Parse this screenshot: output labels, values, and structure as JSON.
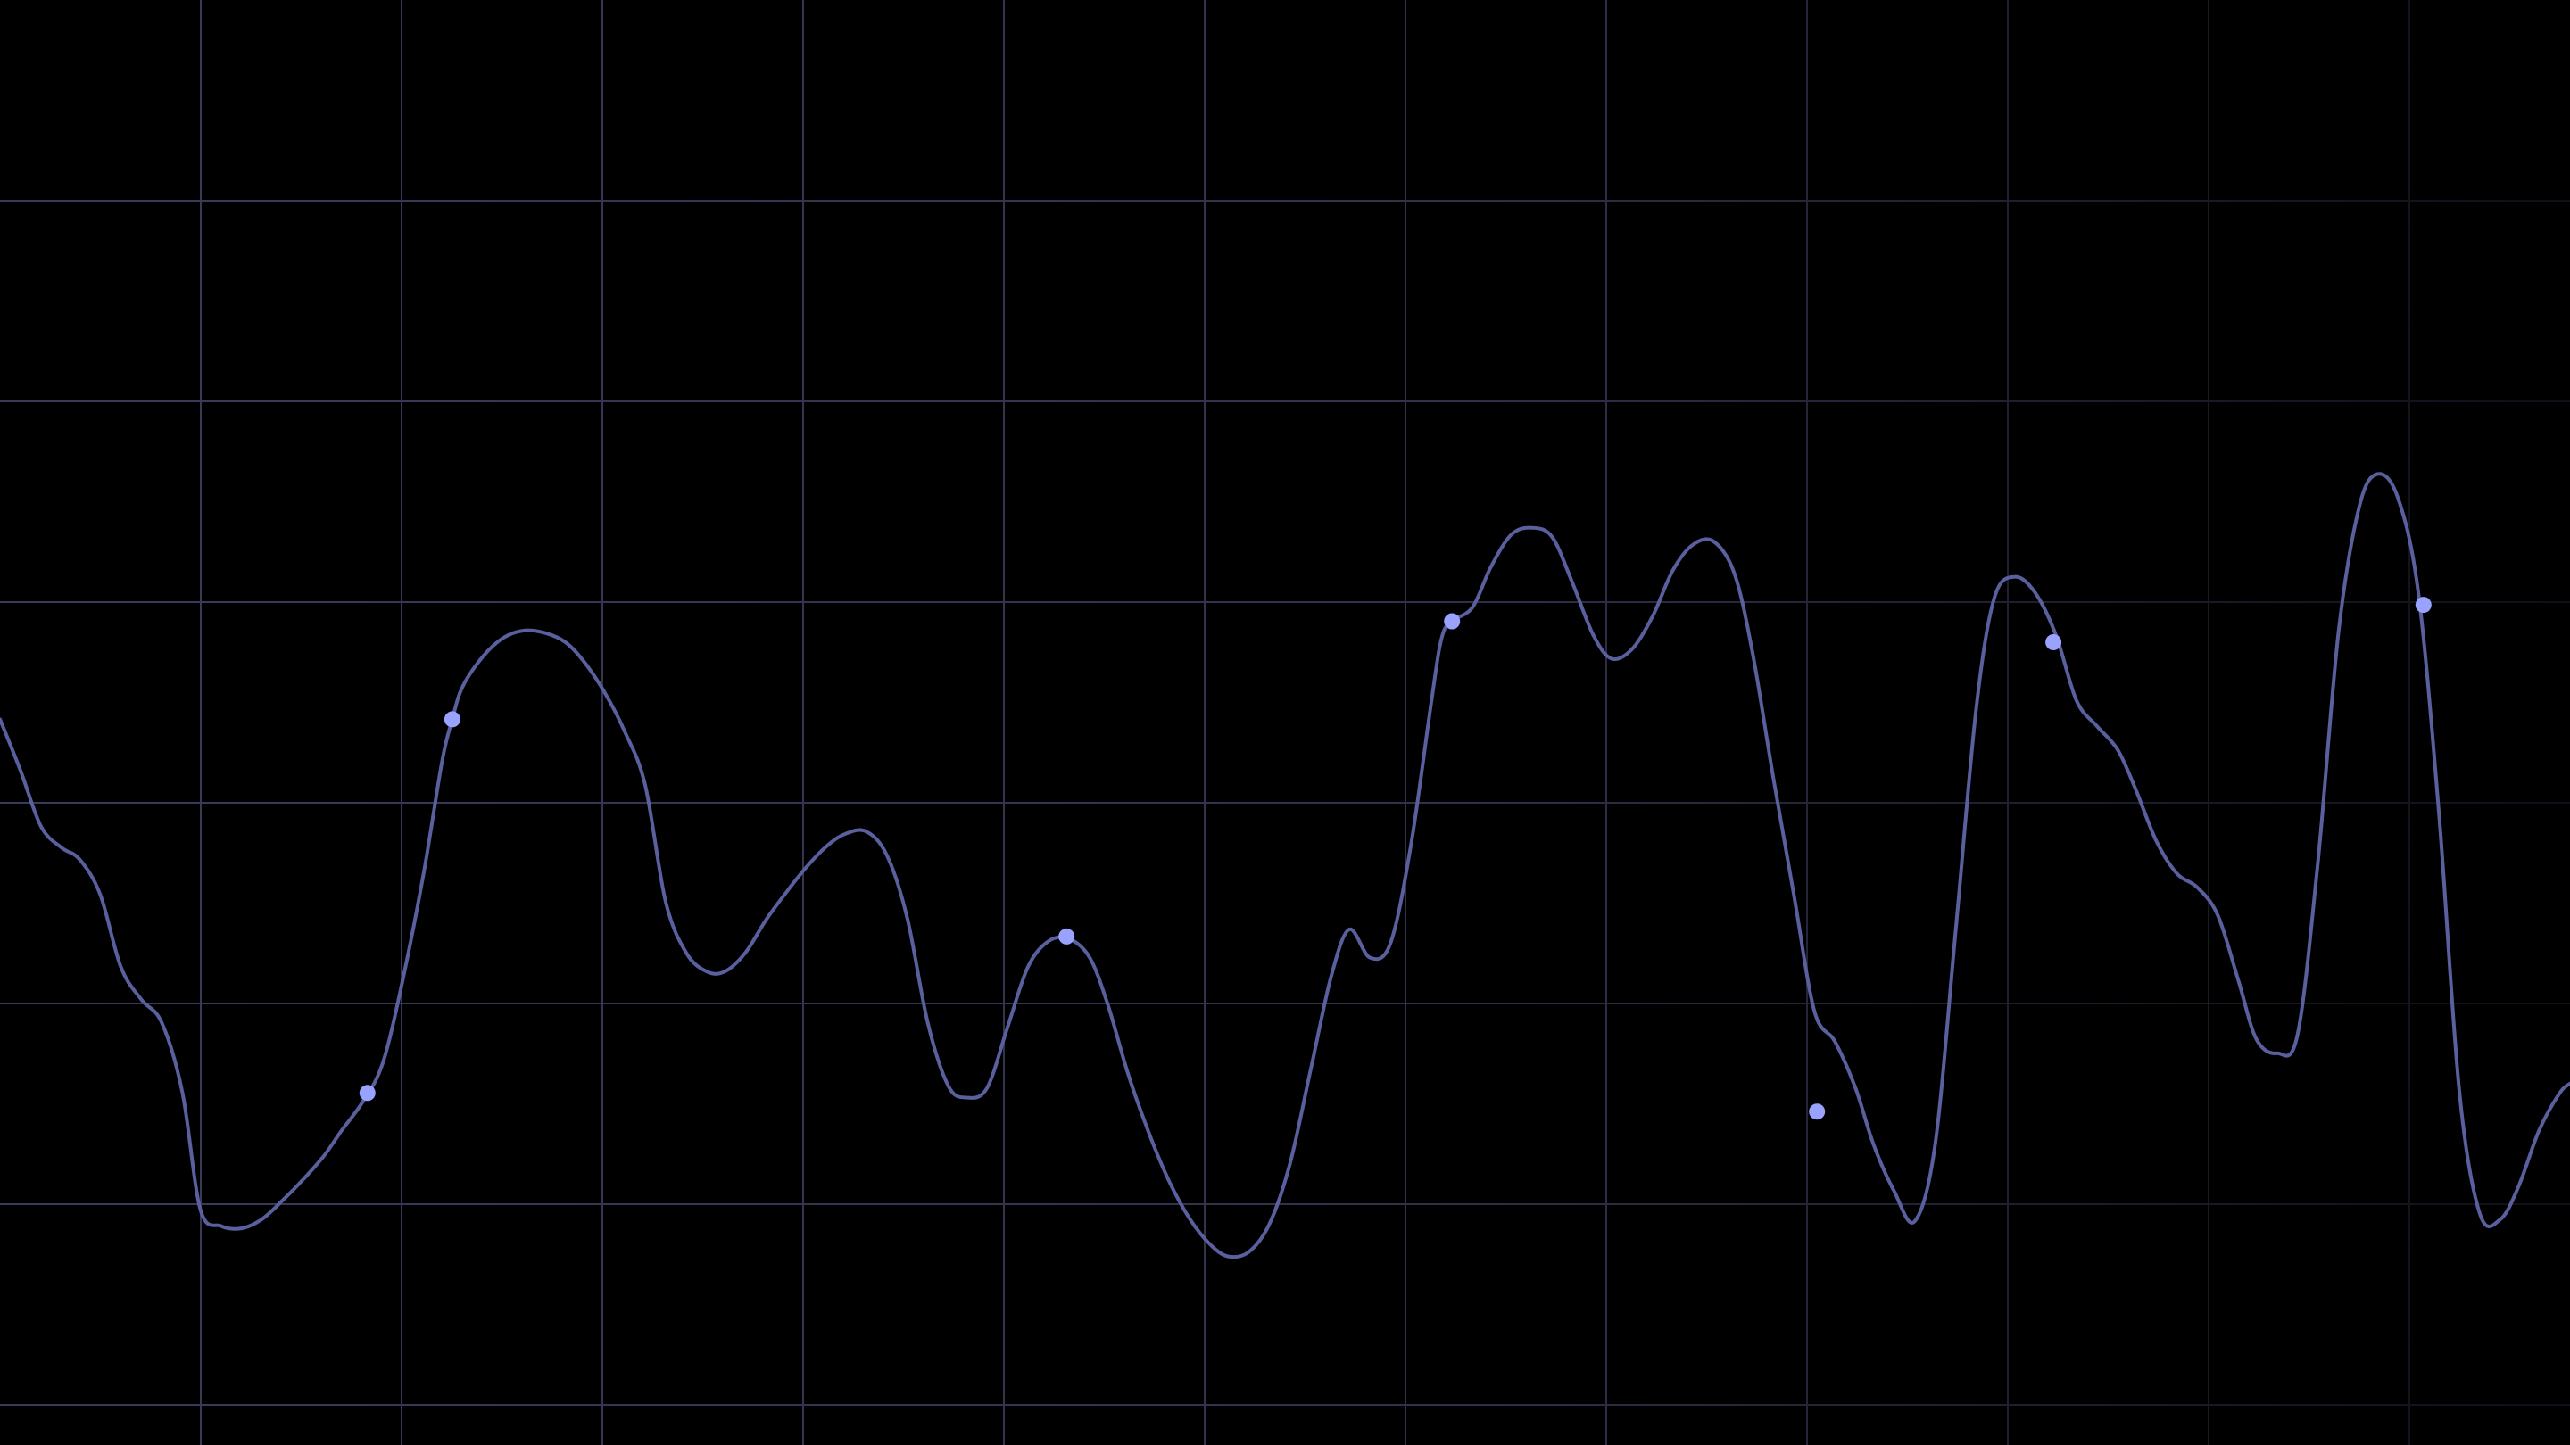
{
  "chart_data": {
    "type": "line",
    "title": "",
    "xlabel": "",
    "ylabel": "",
    "xlim": [
      0,
      100
    ],
    "ylim": [
      0,
      100
    ],
    "grid": true,
    "x_gridlines": 12,
    "y_gridlines": 7,
    "legend": "none",
    "colors": {
      "background": "#000000",
      "grid": "#3a3a5a",
      "line": "#5a5f9e",
      "marker": "#9aa2ff"
    },
    "series": [
      {
        "points": [
          [
            0.0,
            31.0
          ],
          [
            0.8,
            28.8
          ],
          [
            1.6,
            26.4
          ],
          [
            2.4,
            25.5
          ],
          [
            3.1,
            25.0
          ],
          [
            3.9,
            23.5
          ],
          [
            4.7,
            20.4
          ],
          [
            5.5,
            19.0
          ],
          [
            6.3,
            18.0
          ],
          [
            7.1,
            15.0
          ],
          [
            7.8,
            10.0
          ],
          [
            8.6,
            9.3
          ],
          [
            9.4,
            9.2
          ],
          [
            10.2,
            9.6
          ],
          [
            11.0,
            10.4
          ],
          [
            11.8,
            11.3
          ],
          [
            12.6,
            12.3
          ],
          [
            13.3,
            13.4
          ],
          [
            14.1,
            14.6
          ],
          [
            14.9,
            16.3
          ],
          [
            15.7,
            20.0
          ],
          [
            16.5,
            24.5
          ],
          [
            17.2,
            29.2
          ],
          [
            17.6,
            31.0
          ],
          [
            18.0,
            32.4
          ],
          [
            18.8,
            33.7
          ],
          [
            19.6,
            34.5
          ],
          [
            20.4,
            34.8
          ],
          [
            21.2,
            34.7
          ],
          [
            22.0,
            34.3
          ],
          [
            22.7,
            33.5
          ],
          [
            23.5,
            32.2
          ],
          [
            24.3,
            30.5
          ],
          [
            25.1,
            28.2
          ],
          [
            25.9,
            23.2
          ],
          [
            26.7,
            21.0
          ],
          [
            27.5,
            20.2
          ],
          [
            28.2,
            20.2
          ],
          [
            29.0,
            21.0
          ],
          [
            29.8,
            22.4
          ],
          [
            30.6,
            23.6
          ],
          [
            31.4,
            24.7
          ],
          [
            32.2,
            25.6
          ],
          [
            32.9,
            26.1
          ],
          [
            33.7,
            26.2
          ],
          [
            34.5,
            25.2
          ],
          [
            35.3,
            22.5
          ],
          [
            36.1,
            18.0
          ],
          [
            36.9,
            15.3
          ],
          [
            37.6,
            14.8
          ],
          [
            38.4,
            15.2
          ],
          [
            39.2,
            17.8
          ],
          [
            40.0,
            20.4
          ],
          [
            40.8,
            21.5
          ],
          [
            41.6,
            21.6
          ],
          [
            42.4,
            20.8
          ],
          [
            43.1,
            18.8
          ],
          [
            43.9,
            15.8
          ],
          [
            44.7,
            13.3
          ],
          [
            45.5,
            11.2
          ],
          [
            46.3,
            9.6
          ],
          [
            47.1,
            8.5
          ],
          [
            47.8,
            8.0
          ],
          [
            48.6,
            8.2
          ],
          [
            49.4,
            9.4
          ],
          [
            50.2,
            12.0
          ],
          [
            51.0,
            16.0
          ],
          [
            51.8,
            20.0
          ],
          [
            52.5,
            22.0
          ],
          [
            53.3,
            20.8
          ],
          [
            54.1,
            21.4
          ],
          [
            54.9,
            25.6
          ],
          [
            55.7,
            31.8
          ],
          [
            56.1,
            34.5
          ],
          [
            56.5,
            35.2
          ],
          [
            57.3,
            35.8
          ],
          [
            58.0,
            37.5
          ],
          [
            58.8,
            38.9
          ],
          [
            59.6,
            39.2
          ],
          [
            60.4,
            38.8
          ],
          [
            61.2,
            36.8
          ],
          [
            62.0,
            34.6
          ],
          [
            62.7,
            33.6
          ],
          [
            63.5,
            34.0
          ],
          [
            64.3,
            35.4
          ],
          [
            65.1,
            37.4
          ],
          [
            65.9,
            38.5
          ],
          [
            66.7,
            38.6
          ],
          [
            67.5,
            37.2
          ],
          [
            68.2,
            33.8
          ],
          [
            69.0,
            28.5
          ],
          [
            69.8,
            23.5
          ],
          [
            70.6,
            18.5
          ],
          [
            71.4,
            17.2
          ],
          [
            72.2,
            15.2
          ],
          [
            72.9,
            12.8
          ],
          [
            73.7,
            10.8
          ],
          [
            74.5,
            9.5
          ],
          [
            75.3,
            12.8
          ],
          [
            76.1,
            22.0
          ],
          [
            76.9,
            31.5
          ],
          [
            77.6,
            36.2
          ],
          [
            78.4,
            37.1
          ],
          [
            79.2,
            36.4
          ],
          [
            80.0,
            34.6
          ],
          [
            80.8,
            31.8
          ],
          [
            81.6,
            30.7
          ],
          [
            82.4,
            29.7
          ],
          [
            83.1,
            28.0
          ],
          [
            83.9,
            25.8
          ],
          [
            84.7,
            24.4
          ],
          [
            85.5,
            23.8
          ],
          [
            86.3,
            22.6
          ],
          [
            87.1,
            19.8
          ],
          [
            87.8,
            17.3
          ],
          [
            88.6,
            16.7
          ],
          [
            89.4,
            17.5
          ],
          [
            90.2,
            25.0
          ],
          [
            91.0,
            34.8
          ],
          [
            91.8,
            40.1
          ],
          [
            92.5,
            41.5
          ],
          [
            93.3,
            40.5
          ],
          [
            94.1,
            36.4
          ],
          [
            94.9,
            27.0
          ],
          [
            95.7,
            15.0
          ],
          [
            96.5,
            9.8
          ],
          [
            97.3,
            9.6
          ],
          [
            98.0,
            11.0
          ],
          [
            98.8,
            13.4
          ],
          [
            99.6,
            15.0
          ],
          [
            100.0,
            15.4
          ]
        ],
        "markers": [
          [
            14.3,
            15.0
          ],
          [
            17.6,
            31.0
          ],
          [
            41.5,
            21.7
          ],
          [
            56.5,
            35.2
          ],
          [
            70.7,
            14.2
          ],
          [
            79.9,
            34.3
          ],
          [
            94.3,
            35.9
          ]
        ]
      }
    ]
  }
}
